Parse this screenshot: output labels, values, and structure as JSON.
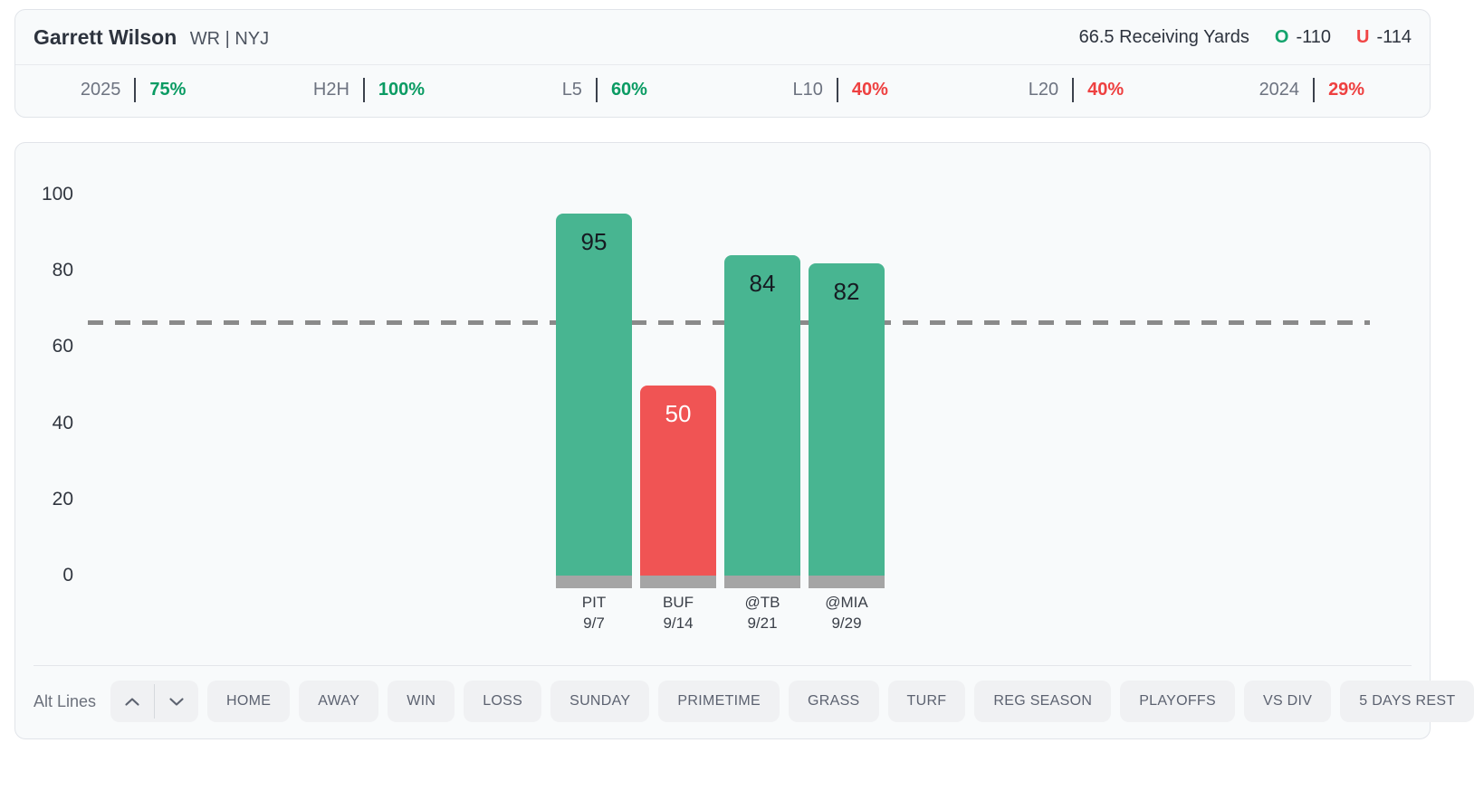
{
  "header": {
    "player": "Garrett Wilson",
    "position": "WR | NYJ",
    "prop_line": "66.5 Receiving Yards",
    "over": {
      "label": "O",
      "odds": "-110"
    },
    "under": {
      "label": "U",
      "odds": "-114"
    }
  },
  "splits": [
    {
      "label": "2025",
      "value": "75%",
      "trend": "positive"
    },
    {
      "label": "H2H",
      "value": "100%",
      "trend": "positive"
    },
    {
      "label": "L5",
      "value": "60%",
      "trend": "positive"
    },
    {
      "label": "L10",
      "value": "40%",
      "trend": "negative"
    },
    {
      "label": "L20",
      "value": "40%",
      "trend": "negative"
    },
    {
      "label": "2024",
      "value": "29%",
      "trend": "negative"
    }
  ],
  "chart_data": {
    "type": "bar",
    "title": "",
    "xlabel": "",
    "ylabel": "",
    "ylim": [
      0,
      100
    ],
    "yticks": [
      0,
      20,
      40,
      60,
      80,
      100
    ],
    "grid": false,
    "prop_line_value": 66.5,
    "categories": [
      "PIT 9/7",
      "BUF 9/14",
      "@TB 9/21",
      "@MIA 9/29"
    ],
    "values": [
      95,
      50,
      84,
      82
    ],
    "games": [
      {
        "opponent": "PIT",
        "date": "9/7",
        "value": 95,
        "result": "over"
      },
      {
        "opponent": "BUF",
        "date": "9/14",
        "value": 50,
        "result": "under"
      },
      {
        "opponent": "@TB",
        "date": "9/21",
        "value": 84,
        "result": "over"
      },
      {
        "opponent": "@MIA",
        "date": "9/29",
        "value": 82,
        "result": "over"
      }
    ],
    "colors": {
      "over": "#48b591",
      "under": "#f05454",
      "base": "#a5a5a5",
      "line": "#8a8a8a"
    }
  },
  "filters": {
    "alt_lines_label": "Alt Lines",
    "buttons": [
      "HOME",
      "AWAY",
      "WIN",
      "LOSS",
      "SUNDAY",
      "PRIMETIME",
      "GRASS",
      "TURF",
      "REG SEASON",
      "PLAYOFFS",
      "VS DIV",
      "5 DAYS REST"
    ]
  }
}
